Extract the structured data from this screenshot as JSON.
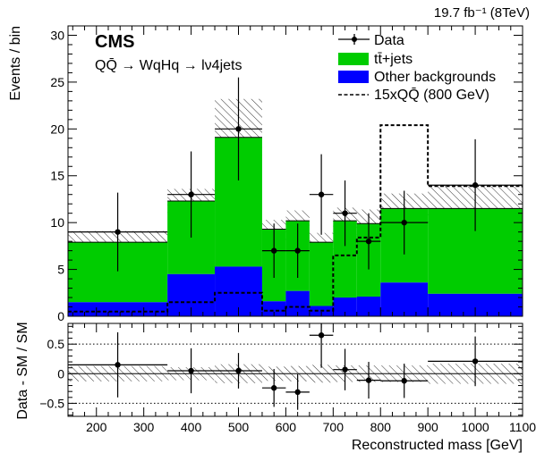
{
  "chart_data": [
    {
      "type": "histogram",
      "panel": "main",
      "experiment": "CMS",
      "channel": "QQ̄ → WqHq → lν4jets",
      "lumi": "19.7 fb⁻¹ (8TeV)",
      "ylabel": "Events / bin",
      "xlim": [
        140,
        1100
      ],
      "ylim": [
        0,
        31
      ],
      "yticks": [
        "0",
        "5",
        "10",
        "15",
        "20",
        "25",
        "30"
      ],
      "bin_edges": [
        140,
        350,
        450,
        550,
        600,
        650,
        700,
        750,
        800,
        900,
        1100
      ],
      "series": [
        {
          "name": "tt̄+jets",
          "color": "#00cc00",
          "stack_totals": [
            7.9,
            12.3,
            19.1,
            9.3,
            10.2,
            7.9,
            10.2,
            9.9,
            11.5,
            11.5
          ]
        },
        {
          "name": "Other backgrounds",
          "color": "#0000ff",
          "values": [
            1.5,
            4.5,
            5.3,
            1.6,
            2.7,
            1.1,
            2.0,
            2.1,
            3.6,
            2.4
          ]
        },
        {
          "name": "15xQQ̄ (800 GeV)",
          "style": "dashed",
          "values": [
            0.5,
            1.5,
            2.5,
            0.6,
            1.0,
            0.6,
            6.5,
            8.4,
            20.4,
            13.9
          ]
        }
      ],
      "uncertainty_band": {
        "low": [
          7.1,
          10.9,
          17.0,
          8.1,
          8.8,
          6.6,
          8.8,
          8.6,
          9.9,
          10.0
        ],
        "high": [
          9.1,
          13.6,
          23.2,
          10.3,
          11.3,
          8.9,
          11.6,
          11.4,
          13.1,
          14.0
        ]
      },
      "data": {
        "name": "Data",
        "x": [
          245,
          400,
          500,
          575,
          625,
          675,
          725,
          775,
          850,
          1000
        ],
        "y": [
          9,
          13,
          20,
          7,
          7,
          13,
          11,
          8,
          10,
          14
        ],
        "yerr": [
          4.2,
          4.6,
          5.5,
          2.9,
          2.9,
          4.3,
          3.5,
          3.0,
          3.4,
          4.9
        ]
      }
    },
    {
      "type": "scatter",
      "panel": "ratio",
      "xlabel": "Reconstructed mass [GeV]",
      "ylabel": "Data - SM / SM",
      "xlim": [
        140,
        1100
      ],
      "ylim": [
        -0.72,
        0.85
      ],
      "xticks": [
        "200",
        "300",
        "400",
        "500",
        "600",
        "700",
        "800",
        "900",
        "1000",
        "1100"
      ],
      "yticks": [
        "−0.5",
        "0",
        "0.5"
      ],
      "ref_lines": [
        -0.5,
        0,
        0.5
      ],
      "band_half_width": [
        0.13,
        0.11,
        0.16,
        0.12,
        0.13,
        0.15,
        0.14,
        0.14,
        0.14,
        0.17
      ],
      "x": [
        245,
        400,
        500,
        575,
        625,
        675,
        725,
        775,
        850,
        1000
      ],
      "y": [
        0.15,
        0.05,
        0.05,
        -0.24,
        -0.31,
        0.65,
        0.07,
        -0.11,
        -0.12,
        0.21
      ],
      "yerr": [
        0.55,
        0.38,
        0.3,
        0.32,
        0.3,
        0.55,
        0.35,
        0.31,
        0.29,
        0.42
      ]
    }
  ]
}
